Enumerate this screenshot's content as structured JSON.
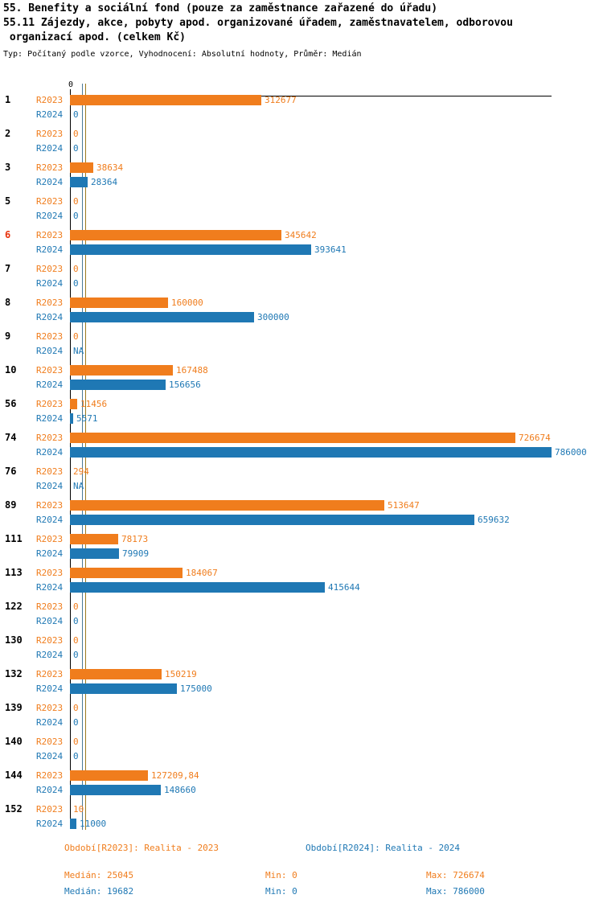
{
  "header": {
    "title_line1": "55. Benefity a sociální fond (pouze za zaměstnance zařazené do úřadu)",
    "title_line2": "55.11 Zájezdy, akce, pobyty apod. organizované úřadem, zaměstnavatelem, odborovou",
    "title_line3": " organizací apod. (celkem Kč)",
    "subtitle": "Typ: Počítaný podle vzorce, Vyhodnocení: Absolutní hodnoty, Průměr: Medián"
  },
  "colors": {
    "series_r2023": "#f07d1d",
    "series_r2024": "#1f78b4",
    "highlight": "#e8330d",
    "median_r2023": "#9c7a1e",
    "median_r2024": "#4b7a96",
    "axis": "#000000"
  },
  "chart_data": {
    "type": "bar",
    "orientation": "horizontal",
    "title": "55.11 Zájezdy, akce, pobyty apod. organizované úřadem, zaměstnavatelem, odborovou organizací apod. (celkem Kč)",
    "axis_tick_label": "0",
    "xlim": [
      0,
      786000
    ],
    "grid": false,
    "legend_position": "bottom",
    "highlighted_category": "6",
    "categories": [
      "1",
      "2",
      "3",
      "5",
      "6",
      "7",
      "8",
      "9",
      "10",
      "56",
      "74",
      "76",
      "89",
      "111",
      "113",
      "122",
      "130",
      "132",
      "139",
      "140",
      "144",
      "152"
    ],
    "series": [
      {
        "name": "R2023",
        "values": [
          312677,
          0,
          38634,
          0,
          345642,
          0,
          160000,
          0,
          167488,
          11456,
          726674,
          294,
          513647,
          78173,
          184067,
          0,
          0,
          150219,
          0,
          0,
          127209.84,
          10
        ]
      },
      {
        "name": "R2024",
        "values": [
          0,
          0,
          28364,
          0,
          393641,
          0,
          300000,
          null,
          156656,
          5571,
          786000,
          null,
          659632,
          79909,
          415644,
          0,
          0,
          175000,
          0,
          0,
          148660,
          11000
        ]
      }
    ],
    "value_labels": [
      [
        "312677",
        "0"
      ],
      [
        "0",
        "0"
      ],
      [
        "38634",
        "28364"
      ],
      [
        "0",
        "0"
      ],
      [
        "345642",
        "393641"
      ],
      [
        "0",
        "0"
      ],
      [
        "160000",
        "300000"
      ],
      [
        "0",
        "NA"
      ],
      [
        "167488",
        "156656"
      ],
      [
        "11456",
        "5571"
      ],
      [
        "726674",
        "786000"
      ],
      [
        "294",
        "NA"
      ],
      [
        "513647",
        "659632"
      ],
      [
        "78173",
        "79909"
      ],
      [
        "184067",
        "415644"
      ],
      [
        "0",
        "0"
      ],
      [
        "0",
        "0"
      ],
      [
        "150219",
        "175000"
      ],
      [
        "0",
        "0"
      ],
      [
        "0",
        "0"
      ],
      [
        "127209,84",
        "148660"
      ],
      [
        "10",
        "11000"
      ]
    ],
    "medians": {
      "R2023": 25045,
      "R2024": 19682
    }
  },
  "legend": {
    "period_2023": "Období[R2023]: Realita - 2023",
    "period_2024": "Období[R2024]: Realita - 2024",
    "stats_2023": {
      "median": "Medián: 25045",
      "min": "Min: 0",
      "max": "Max: 726674"
    },
    "stats_2024": {
      "median": "Medián: 19682",
      "min": "Min: 0",
      "max": "Max: 786000"
    }
  }
}
